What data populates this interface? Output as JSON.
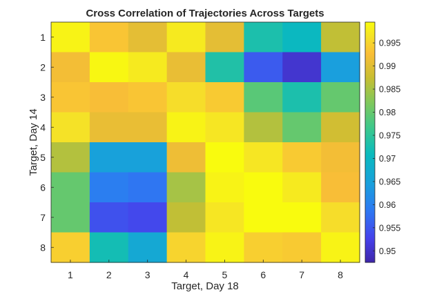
{
  "chart_data": {
    "type": "heatmap",
    "title": "Cross Correlation of Trajectories Across Targets",
    "xlabel": "Target, Day 18",
    "ylabel": "Target, Day 14",
    "x_categories": [
      "1",
      "2",
      "3",
      "4",
      "5",
      "6",
      "7",
      "8"
    ],
    "y_categories": [
      "1",
      "2",
      "3",
      "4",
      "5",
      "6",
      "7",
      "8"
    ],
    "values": [
      [
        0.9985,
        0.9935,
        0.9905,
        0.9975,
        0.9905,
        0.973,
        0.9705,
        0.987
      ],
      [
        0.992,
        0.999,
        0.9975,
        0.991,
        0.9735,
        0.9555,
        0.9505,
        0.9645
      ],
      [
        0.9935,
        0.9925,
        0.9935,
        0.996,
        0.994,
        0.979,
        0.973,
        0.98
      ],
      [
        0.9965,
        0.991,
        0.991,
        0.9985,
        0.997,
        0.986,
        0.98,
        0.9885
      ],
      [
        0.986,
        0.965,
        0.965,
        0.9915,
        0.9995,
        0.997,
        0.994,
        0.992
      ],
      [
        0.98,
        0.9595,
        0.9585,
        0.985,
        0.9985,
        0.9995,
        0.9975,
        0.9925
      ],
      [
        0.98,
        0.9545,
        0.9535,
        0.987,
        0.997,
        0.9995,
        0.9995,
        0.996
      ],
      [
        0.9945,
        0.972,
        0.9665,
        0.995,
        0.9985,
        0.9945,
        0.994,
        0.9985
      ]
    ],
    "colorbar": {
      "range": [
        0.9475,
        0.9995
      ],
      "ticks": [
        "0.995",
        "0.99",
        "0.985",
        "0.98",
        "0.975",
        "0.97",
        "0.965",
        "0.96",
        "0.955",
        "0.95"
      ],
      "tick_values": [
        0.995,
        0.99,
        0.985,
        0.98,
        0.975,
        0.97,
        0.965,
        0.96,
        0.955,
        0.95
      ]
    },
    "colormap": "parula",
    "grid": false
  }
}
